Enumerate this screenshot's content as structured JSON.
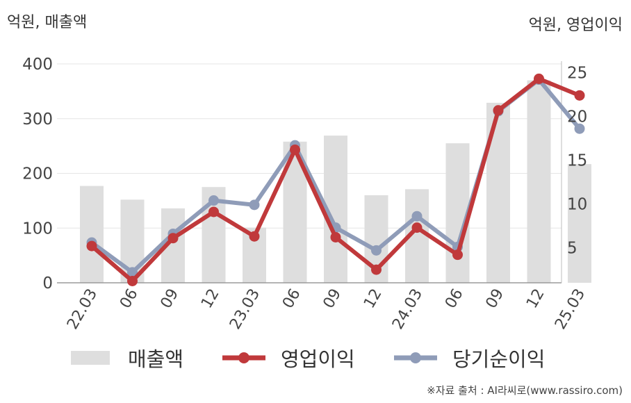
{
  "units": {
    "left": "억원, 매출액",
    "right": "억원, 영업이익"
  },
  "source": "※자료 출처 : AI라씨로(www.rassiro.com)",
  "colors": {
    "revenue": "#dedede",
    "operating_profit": "#c0393b",
    "net_income": "#8f9cb8"
  },
  "chart_data": {
    "type": "bar",
    "categories": [
      "22.03",
      "06",
      "09",
      "12",
      "23.03",
      "06",
      "09",
      "12",
      "24.03",
      "06",
      "09",
      "12",
      "25.03"
    ],
    "y_left": {
      "ylim": [
        0,
        400
      ],
      "ticks": [
        0,
        100,
        200,
        300,
        400
      ]
    },
    "y_right": {
      "ylim": [
        1,
        26
      ],
      "ticks": [
        5,
        10,
        15,
        20,
        25
      ]
    },
    "grid": true,
    "legend_position": "bottom",
    "series": [
      {
        "name": "매출액",
        "type": "bar",
        "axis": "left",
        "values": [
          177,
          152,
          136,
          175,
          101,
          258,
          269,
          160,
          171,
          255,
          329,
          370,
          217
        ]
      },
      {
        "name": "영업이익",
        "type": "line",
        "axis": "right",
        "values": [
          5.2,
          1.2,
          6.1,
          9.1,
          6.3,
          16.2,
          6.2,
          2.5,
          7.3,
          4.2,
          20.7,
          24.3,
          22.4
        ]
      },
      {
        "name": "당기순이익",
        "type": "line",
        "axis": "right",
        "values": [
          5.6,
          2.2,
          6.6,
          10.4,
          9.9,
          16.7,
          7.3,
          4.7,
          8.6,
          5.1,
          20.6,
          24.2,
          18.6
        ]
      }
    ]
  }
}
